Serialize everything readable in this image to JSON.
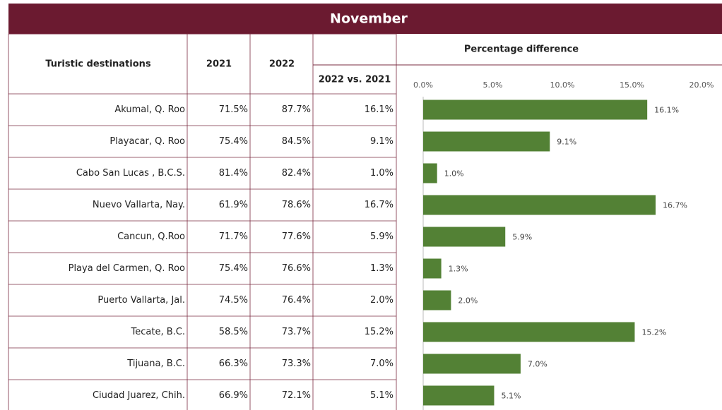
{
  "header": {
    "title": "November"
  },
  "table": {
    "header": [
      "Turistic destinations",
      "2021",
      "2022",
      "Percentage difference",
      "2022 vs. 2021"
    ],
    "rows": [
      [
        "Akumal, Q. Roo",
        "71.5%",
        "87.7%",
        "16.1%"
      ],
      [
        "Playacar, Q. Roo",
        "75.4%",
        "84.5%",
        "9.1%"
      ],
      [
        "Cabo San Lucas , B.C.S.",
        "81.4%",
        "82.4%",
        "1.0%"
      ],
      [
        "Nuevo Vallarta, Nay.",
        "61.9%",
        "78.6%",
        "16.7%"
      ],
      [
        "Cancun, Q.Roo",
        "71.7%",
        "77.6%",
        "5.9%"
      ],
      [
        "Playa del Carmen, Q. Roo",
        "75.4%",
        "76.6%",
        "1.3%"
      ],
      [
        "Puerto Vallarta, Jal.",
        "74.5%",
        "76.4%",
        "2.0%"
      ],
      [
        "Tecate, B.C.",
        "58.5%",
        "73.7%",
        "15.2%"
      ],
      [
        "Tijuana, B.C.",
        "66.3%",
        "73.3%",
        "7.0%"
      ],
      [
        "Ciudad Juarez, Chih.",
        "66.9%",
        "72.1%",
        "5.1%"
      ]
    ]
  },
  "chart_data": {
    "type": "bar",
    "orientation": "horizontal",
    "color": "#538135",
    "values": [
      16.1,
      9.1,
      1.0,
      16.7,
      5.9,
      1.3,
      2.0,
      15.2,
      7.0,
      5.1
    ],
    "value_labels": [
      "16.1%",
      "9.1%",
      "1.0%",
      "16.7%",
      "5.9%",
      "1.3%",
      "2.0%",
      "15.2%",
      "7.0%",
      "5.1%"
    ],
    "xlim": [
      0,
      20
    ],
    "xticks": [
      {
        "value": 0,
        "label": "0.0%"
      },
      {
        "value": 5,
        "label": "5.0%"
      },
      {
        "value": 10,
        "label": "10.0%"
      },
      {
        "value": 15,
        "label": "15.0%"
      },
      {
        "value": 20,
        "label": "20.0%"
      }
    ]
  }
}
